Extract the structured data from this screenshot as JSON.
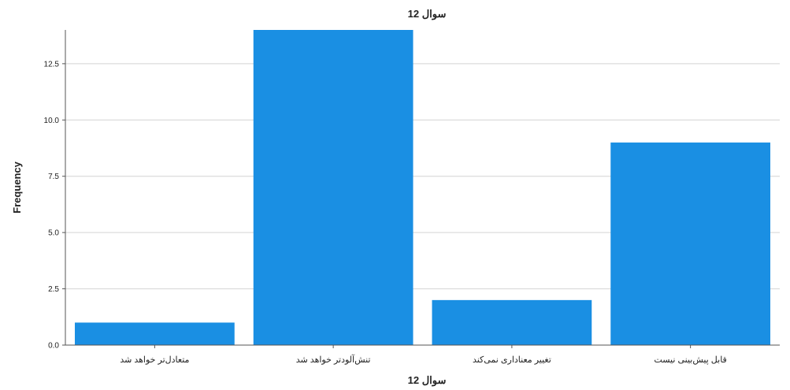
{
  "chart_data": {
    "type": "bar",
    "title": "سوال 12",
    "xlabel": "سوال 12",
    "ylabel": "Frequency",
    "categories": [
      "متعادل‌تر خواهد شد",
      "تنش‌آلودتر خواهد شد",
      "تغییر معناداری نمی‌کند",
      "قابل پیش‌بینی نیست"
    ],
    "values": [
      1,
      14,
      2,
      9
    ],
    "ylim": [
      0,
      14
    ],
    "yticks": [
      "0.0",
      "2.5",
      "5.0",
      "7.5",
      "10.0",
      "12.5"
    ],
    "bar_color": "#1a8fe3",
    "grid": true,
    "legend": "none"
  }
}
